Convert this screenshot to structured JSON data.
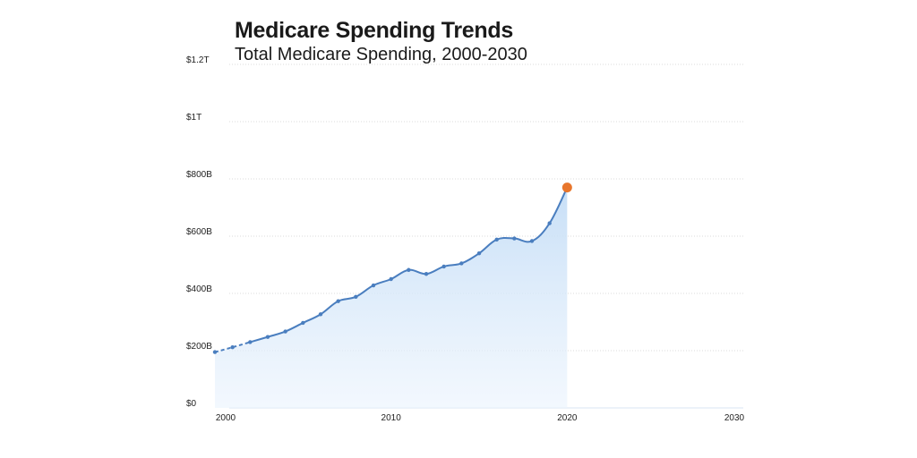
{
  "chart_data": {
    "type": "line",
    "title": "Medicare Spending Trends",
    "subtitle": "Total Medicare Spending, 2000-2030",
    "xlabel": "",
    "ylabel": "",
    "xlim": [
      2000,
      2030
    ],
    "ylim": [
      0,
      1200
    ],
    "y_unit": "billions of dollars",
    "grid": true,
    "y_ticks": [
      {
        "value": 0,
        "label": "$0"
      },
      {
        "value": 200,
        "label": "$200B"
      },
      {
        "value": 400,
        "label": "$400B"
      },
      {
        "value": 600,
        "label": "$600B"
      },
      {
        "value": 800,
        "label": "$800B"
      },
      {
        "value": 1000,
        "label": "$1T"
      },
      {
        "value": 1200,
        "label": "$1.2T"
      }
    ],
    "x_ticks": [
      {
        "value": 2000,
        "label": "2000"
      },
      {
        "value": 2010,
        "label": "2010"
      },
      {
        "value": 2020,
        "label": "2020"
      },
      {
        "value": 2030,
        "label": "2030"
      }
    ],
    "series": [
      {
        "color": "#4a7ebf",
        "fill": "#cfe3f7",
        "highlight_color": "#e8762c",
        "points": [
          {
            "x": 2000,
            "y": 195
          },
          {
            "x": 2001,
            "y": 212
          },
          {
            "x": 2002,
            "y": 230
          },
          {
            "x": 2003,
            "y": 248
          },
          {
            "x": 2004,
            "y": 267
          },
          {
            "x": 2005,
            "y": 297
          },
          {
            "x": 2006,
            "y": 327
          },
          {
            "x": 2007,
            "y": 373
          },
          {
            "x": 2008,
            "y": 388
          },
          {
            "x": 2009,
            "y": 428
          },
          {
            "x": 2010,
            "y": 450
          },
          {
            "x": 2011,
            "y": 482
          },
          {
            "x": 2012,
            "y": 468
          },
          {
            "x": 2013,
            "y": 494
          },
          {
            "x": 2014,
            "y": 505
          },
          {
            "x": 2015,
            "y": 540
          },
          {
            "x": 2016,
            "y": 588
          },
          {
            "x": 2017,
            "y": 592
          },
          {
            "x": 2018,
            "y": 583
          },
          {
            "x": 2019,
            "y": 645
          },
          {
            "x": 2020,
            "y": 770
          }
        ],
        "dashed_until_x": 2002,
        "highlight_x": 2020
      }
    ]
  }
}
